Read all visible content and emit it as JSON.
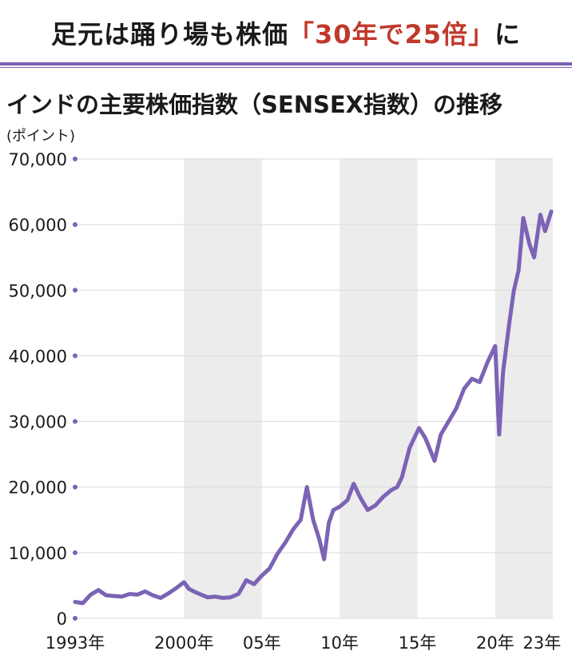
{
  "headline": {
    "prefix": "足元は踊り場も株価",
    "highlight": "「30年で25倍」",
    "suffix": "に",
    "highlight_color": "#c0392b"
  },
  "chart_data": {
    "type": "line",
    "title": "インドの主要株価指数（SENSEX指数）の推移",
    "ylabel": "(ポイント)",
    "xlabel": "",
    "ylim": [
      0,
      70000
    ],
    "xlim": [
      1993.0,
      2023.7
    ],
    "yticks": [
      {
        "value": 0,
        "label": "0"
      },
      {
        "value": 10000,
        "label": "10,000"
      },
      {
        "value": 20000,
        "label": "20,000"
      },
      {
        "value": 30000,
        "label": "30,000"
      },
      {
        "value": 40000,
        "label": "40,000"
      },
      {
        "value": 50000,
        "label": "50,000"
      },
      {
        "value": 60000,
        "label": "60,000"
      },
      {
        "value": 70000,
        "label": "70,000"
      }
    ],
    "xticks": [
      {
        "value": 1993,
        "label": "1993年"
      },
      {
        "value": 2000,
        "label": "2000年"
      },
      {
        "value": 2005,
        "label": "05年"
      },
      {
        "value": 2010,
        "label": "10年"
      },
      {
        "value": 2015,
        "label": "15年"
      },
      {
        "value": 2020,
        "label": "20年"
      },
      {
        "value": 2023,
        "label": "23年"
      }
    ],
    "shaded_bands": [
      [
        2000,
        2005
      ],
      [
        2010,
        2015
      ],
      [
        2020,
        2023.7
      ]
    ],
    "grid": true,
    "line_color": "#7b63b5",
    "band_color": "#ececec",
    "series": [
      {
        "x": [
          1993.0,
          1993.5,
          1994.0,
          1994.5,
          1995.0,
          1995.5,
          1996.0,
          1996.5,
          1997.0,
          1997.5,
          1998.0,
          1998.5,
          1999.0,
          1999.5,
          2000.0,
          2000.3,
          2000.7,
          2001.0,
          2001.5,
          2002.0,
          2002.5,
          2003.0,
          2003.5,
          2004.0,
          2004.5,
          2005.0,
          2005.5,
          2006.0,
          2006.5,
          2007.0,
          2007.5,
          2007.9,
          2008.3,
          2008.7,
          2009.0,
          2009.3,
          2009.6,
          2010.0,
          2010.5,
          2010.9,
          2011.3,
          2011.8,
          2012.3,
          2012.8,
          2013.3,
          2013.7,
          2014.0,
          2014.5,
          2015.1,
          2015.5,
          2016.1,
          2016.5,
          2017.0,
          2017.5,
          2018.0,
          2018.5,
          2019.0,
          2019.5,
          2020.0,
          2020.25,
          2020.5,
          2020.9,
          2021.2,
          2021.5,
          2021.8,
          2022.2,
          2022.5,
          2022.9,
          2023.2,
          2023.6
        ],
        "values": [
          2500,
          2300,
          3600,
          4300,
          3500,
          3400,
          3300,
          3700,
          3600,
          4100,
          3500,
          3100,
          3800,
          4600,
          5500,
          4500,
          4000,
          3700,
          3200,
          3300,
          3100,
          3200,
          3700,
          5800,
          5200,
          6500,
          7600,
          9800,
          11500,
          13500,
          15000,
          20000,
          15000,
          12000,
          9000,
          14500,
          16500,
          17000,
          18000,
          20500,
          18500,
          16500,
          17200,
          18500,
          19500,
          20000,
          21500,
          26000,
          29000,
          27500,
          24000,
          28000,
          30000,
          32000,
          35000,
          36500,
          36000,
          39000,
          41500,
          28000,
          37500,
          45000,
          50000,
          53000,
          61000,
          57000,
          55000,
          61500,
          59000,
          62000
        ]
      }
    ]
  }
}
